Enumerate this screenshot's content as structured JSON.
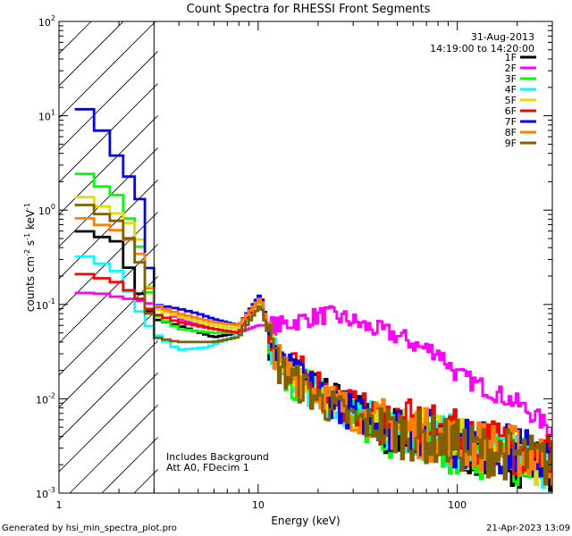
{
  "chart_data": {
    "type": "line",
    "title": "Count Spectra for RHESSI Front Segments",
    "xlabel": "Energy (keV)",
    "ylabel": "counts cm^-2 s^-1 keV^-1",
    "xscale": "log",
    "yscale": "log",
    "xlim": [
      1,
      300
    ],
    "ylim": [
      0.001,
      100
    ],
    "x_tick_labels": [
      "1",
      "10",
      "100"
    ],
    "y_tick_labels": [
      {
        "base": "10",
        "exp": "-3"
      },
      {
        "base": "10",
        "exp": "-2"
      },
      {
        "base": "10",
        "exp": "-1"
      },
      {
        "base": "10",
        "exp": "0"
      },
      {
        "base": "10",
        "exp": "1"
      },
      {
        "base": "10",
        "exp": "2"
      }
    ],
    "date": "31-Aug-2013",
    "time_range": "14:19:00 to 14:20:00",
    "annotations": [
      "Includes Background",
      "Att A0, FDecim 1"
    ],
    "hatched_region_below_keV": 3,
    "series": [
      {
        "name": "1F",
        "color": "#000000",
        "points": [
          [
            1.2,
            0.65
          ],
          [
            1.5,
            0.55
          ],
          [
            2.0,
            0.46
          ],
          [
            2.5,
            0.14
          ],
          [
            3.0,
            0.07
          ],
          [
            3.5,
            0.065
          ],
          [
            4.5,
            0.055
          ],
          [
            6.0,
            0.045
          ],
          [
            8.0,
            0.05
          ],
          [
            10.3,
            0.12
          ],
          [
            11.5,
            0.04
          ],
          [
            13,
            0.022
          ],
          [
            15,
            0.02
          ],
          [
            20,
            0.012
          ],
          [
            30,
            0.008
          ],
          [
            40,
            0.005
          ],
          [
            60,
            0.004
          ],
          [
            100,
            0.003
          ],
          [
            150,
            0.0025
          ],
          [
            200,
            0.0022
          ],
          [
            300,
            0.002
          ]
        ]
      },
      {
        "name": "2F",
        "color": "#ff00ff",
        "points": [
          [
            1.2,
            0.13
          ],
          [
            1.5,
            0.135
          ],
          [
            2.0,
            0.12
          ],
          [
            2.5,
            0.11
          ],
          [
            3.0,
            0.1
          ],
          [
            4.0,
            0.07
          ],
          [
            6.0,
            0.055
          ],
          [
            8.0,
            0.05
          ],
          [
            10,
            0.06
          ],
          [
            13,
            0.06
          ],
          [
            17,
            0.07
          ],
          [
            22,
            0.078
          ],
          [
            28,
            0.07
          ],
          [
            35,
            0.058
          ],
          [
            45,
            0.05
          ],
          [
            55,
            0.043
          ],
          [
            65,
            0.035
          ],
          [
            80,
            0.032
          ],
          [
            100,
            0.018
          ],
          [
            150,
            0.012
          ],
          [
            200,
            0.009
          ],
          [
            260,
            0.006
          ],
          [
            300,
            0.0045
          ]
        ]
      },
      {
        "name": "3F",
        "color": "#00ff00",
        "points": [
          [
            1.2,
            3.0
          ],
          [
            1.5,
            2.0
          ],
          [
            2.0,
            1.4
          ],
          [
            2.5,
            0.5
          ],
          [
            3.0,
            0.08
          ],
          [
            4.0,
            0.055
          ],
          [
            6.0,
            0.05
          ],
          [
            8.0,
            0.05
          ],
          [
            10.3,
            0.11
          ],
          [
            11.5,
            0.04
          ],
          [
            13,
            0.02
          ],
          [
            20,
            0.01
          ],
          [
            30,
            0.006
          ],
          [
            45,
            0.004
          ],
          [
            60,
            0.0035
          ],
          [
            100,
            0.003
          ],
          [
            150,
            0.0025
          ],
          [
            200,
            0.0022
          ],
          [
            300,
            0.002
          ]
        ]
      },
      {
        "name": "4F",
        "color": "#00ffff",
        "points": [
          [
            1.2,
            0.35
          ],
          [
            1.5,
            0.3
          ],
          [
            2.0,
            0.22
          ],
          [
            2.5,
            0.09
          ],
          [
            3.0,
            0.05
          ],
          [
            4.0,
            0.033
          ],
          [
            5.5,
            0.035
          ],
          [
            7.5,
            0.045
          ],
          [
            10.3,
            0.1
          ],
          [
            11.5,
            0.04
          ],
          [
            13,
            0.02
          ],
          [
            20,
            0.011
          ],
          [
            30,
            0.007
          ],
          [
            50,
            0.005
          ],
          [
            80,
            0.004
          ],
          [
            120,
            0.003
          ],
          [
            200,
            0.0025
          ],
          [
            300,
            0.002
          ]
        ]
      },
      {
        "name": "5F",
        "color": "#e0e000",
        "points": [
          [
            1.2,
            1.6
          ],
          [
            1.5,
            1.2
          ],
          [
            2.0,
            0.9
          ],
          [
            2.5,
            0.6
          ],
          [
            3.0,
            0.09
          ],
          [
            4.0,
            0.075
          ],
          [
            6.0,
            0.06
          ],
          [
            8.0,
            0.055
          ],
          [
            10.3,
            0.11
          ],
          [
            11.5,
            0.04
          ],
          [
            13,
            0.022
          ],
          [
            20,
            0.012
          ],
          [
            30,
            0.007
          ],
          [
            50,
            0.005
          ],
          [
            100,
            0.0035
          ],
          [
            200,
            0.0025
          ],
          [
            300,
            0.002
          ]
        ]
      },
      {
        "name": "6F",
        "color": "#ff0000",
        "points": [
          [
            1.2,
            0.22
          ],
          [
            1.5,
            0.2
          ],
          [
            2.0,
            0.17
          ],
          [
            2.5,
            0.12
          ],
          [
            3.0,
            0.08
          ],
          [
            4.0,
            0.065
          ],
          [
            6.0,
            0.055
          ],
          [
            8.0,
            0.05
          ],
          [
            10.3,
            0.13
          ],
          [
            11.5,
            0.045
          ],
          [
            13,
            0.025
          ],
          [
            20,
            0.014
          ],
          [
            30,
            0.008
          ],
          [
            50,
            0.0055
          ],
          [
            100,
            0.004
          ],
          [
            200,
            0.003
          ],
          [
            300,
            0.0025
          ]
        ]
      },
      {
        "name": "7F",
        "color": "#0000ff",
        "points": [
          [
            1.2,
            14
          ],
          [
            1.5,
            10
          ],
          [
            1.8,
            5
          ],
          [
            2.2,
            2.5
          ],
          [
            2.6,
            1.2
          ],
          [
            3.0,
            0.1
          ],
          [
            4.0,
            0.09
          ],
          [
            5.0,
            0.08
          ],
          [
            6.0,
            0.07
          ],
          [
            8.0,
            0.06
          ],
          [
            10.3,
            0.13
          ],
          [
            11.5,
            0.045
          ],
          [
            13,
            0.022
          ],
          [
            20,
            0.012
          ],
          [
            30,
            0.007
          ],
          [
            50,
            0.005
          ],
          [
            100,
            0.0035
          ],
          [
            200,
            0.0028
          ],
          [
            300,
            0.0022
          ]
        ]
      },
      {
        "name": "8F",
        "color": "#ff8000",
        "points": [
          [
            1.2,
            0.9
          ],
          [
            1.5,
            0.75
          ],
          [
            2.0,
            0.6
          ],
          [
            2.5,
            0.4
          ],
          [
            3.0,
            0.1
          ],
          [
            4.0,
            0.08
          ],
          [
            6.0,
            0.065
          ],
          [
            8.0,
            0.06
          ],
          [
            10.3,
            0.12
          ],
          [
            11.5,
            0.045
          ],
          [
            13,
            0.022
          ],
          [
            20,
            0.012
          ],
          [
            30,
            0.007
          ],
          [
            50,
            0.005
          ],
          [
            100,
            0.0035
          ],
          [
            200,
            0.0028
          ],
          [
            300,
            0.0022
          ]
        ]
      },
      {
        "name": "9F",
        "color": "#806000",
        "points": [
          [
            1.2,
            1.3
          ],
          [
            1.5,
            1.0
          ],
          [
            2.0,
            0.75
          ],
          [
            2.5,
            0.35
          ],
          [
            3.0,
            0.045
          ],
          [
            4.0,
            0.04
          ],
          [
            6.0,
            0.04
          ],
          [
            8.0,
            0.045
          ],
          [
            10.3,
            0.1
          ],
          [
            11.5,
            0.04
          ],
          [
            13,
            0.02
          ],
          [
            20,
            0.01
          ],
          [
            30,
            0.006
          ],
          [
            50,
            0.0045
          ],
          [
            100,
            0.0032
          ],
          [
            200,
            0.0025
          ],
          [
            300,
            0.002
          ]
        ]
      }
    ]
  },
  "footer": {
    "left": "Generated by hsi_min_spectra_plot.pro",
    "right": "21-Apr-2023 13:09"
  }
}
